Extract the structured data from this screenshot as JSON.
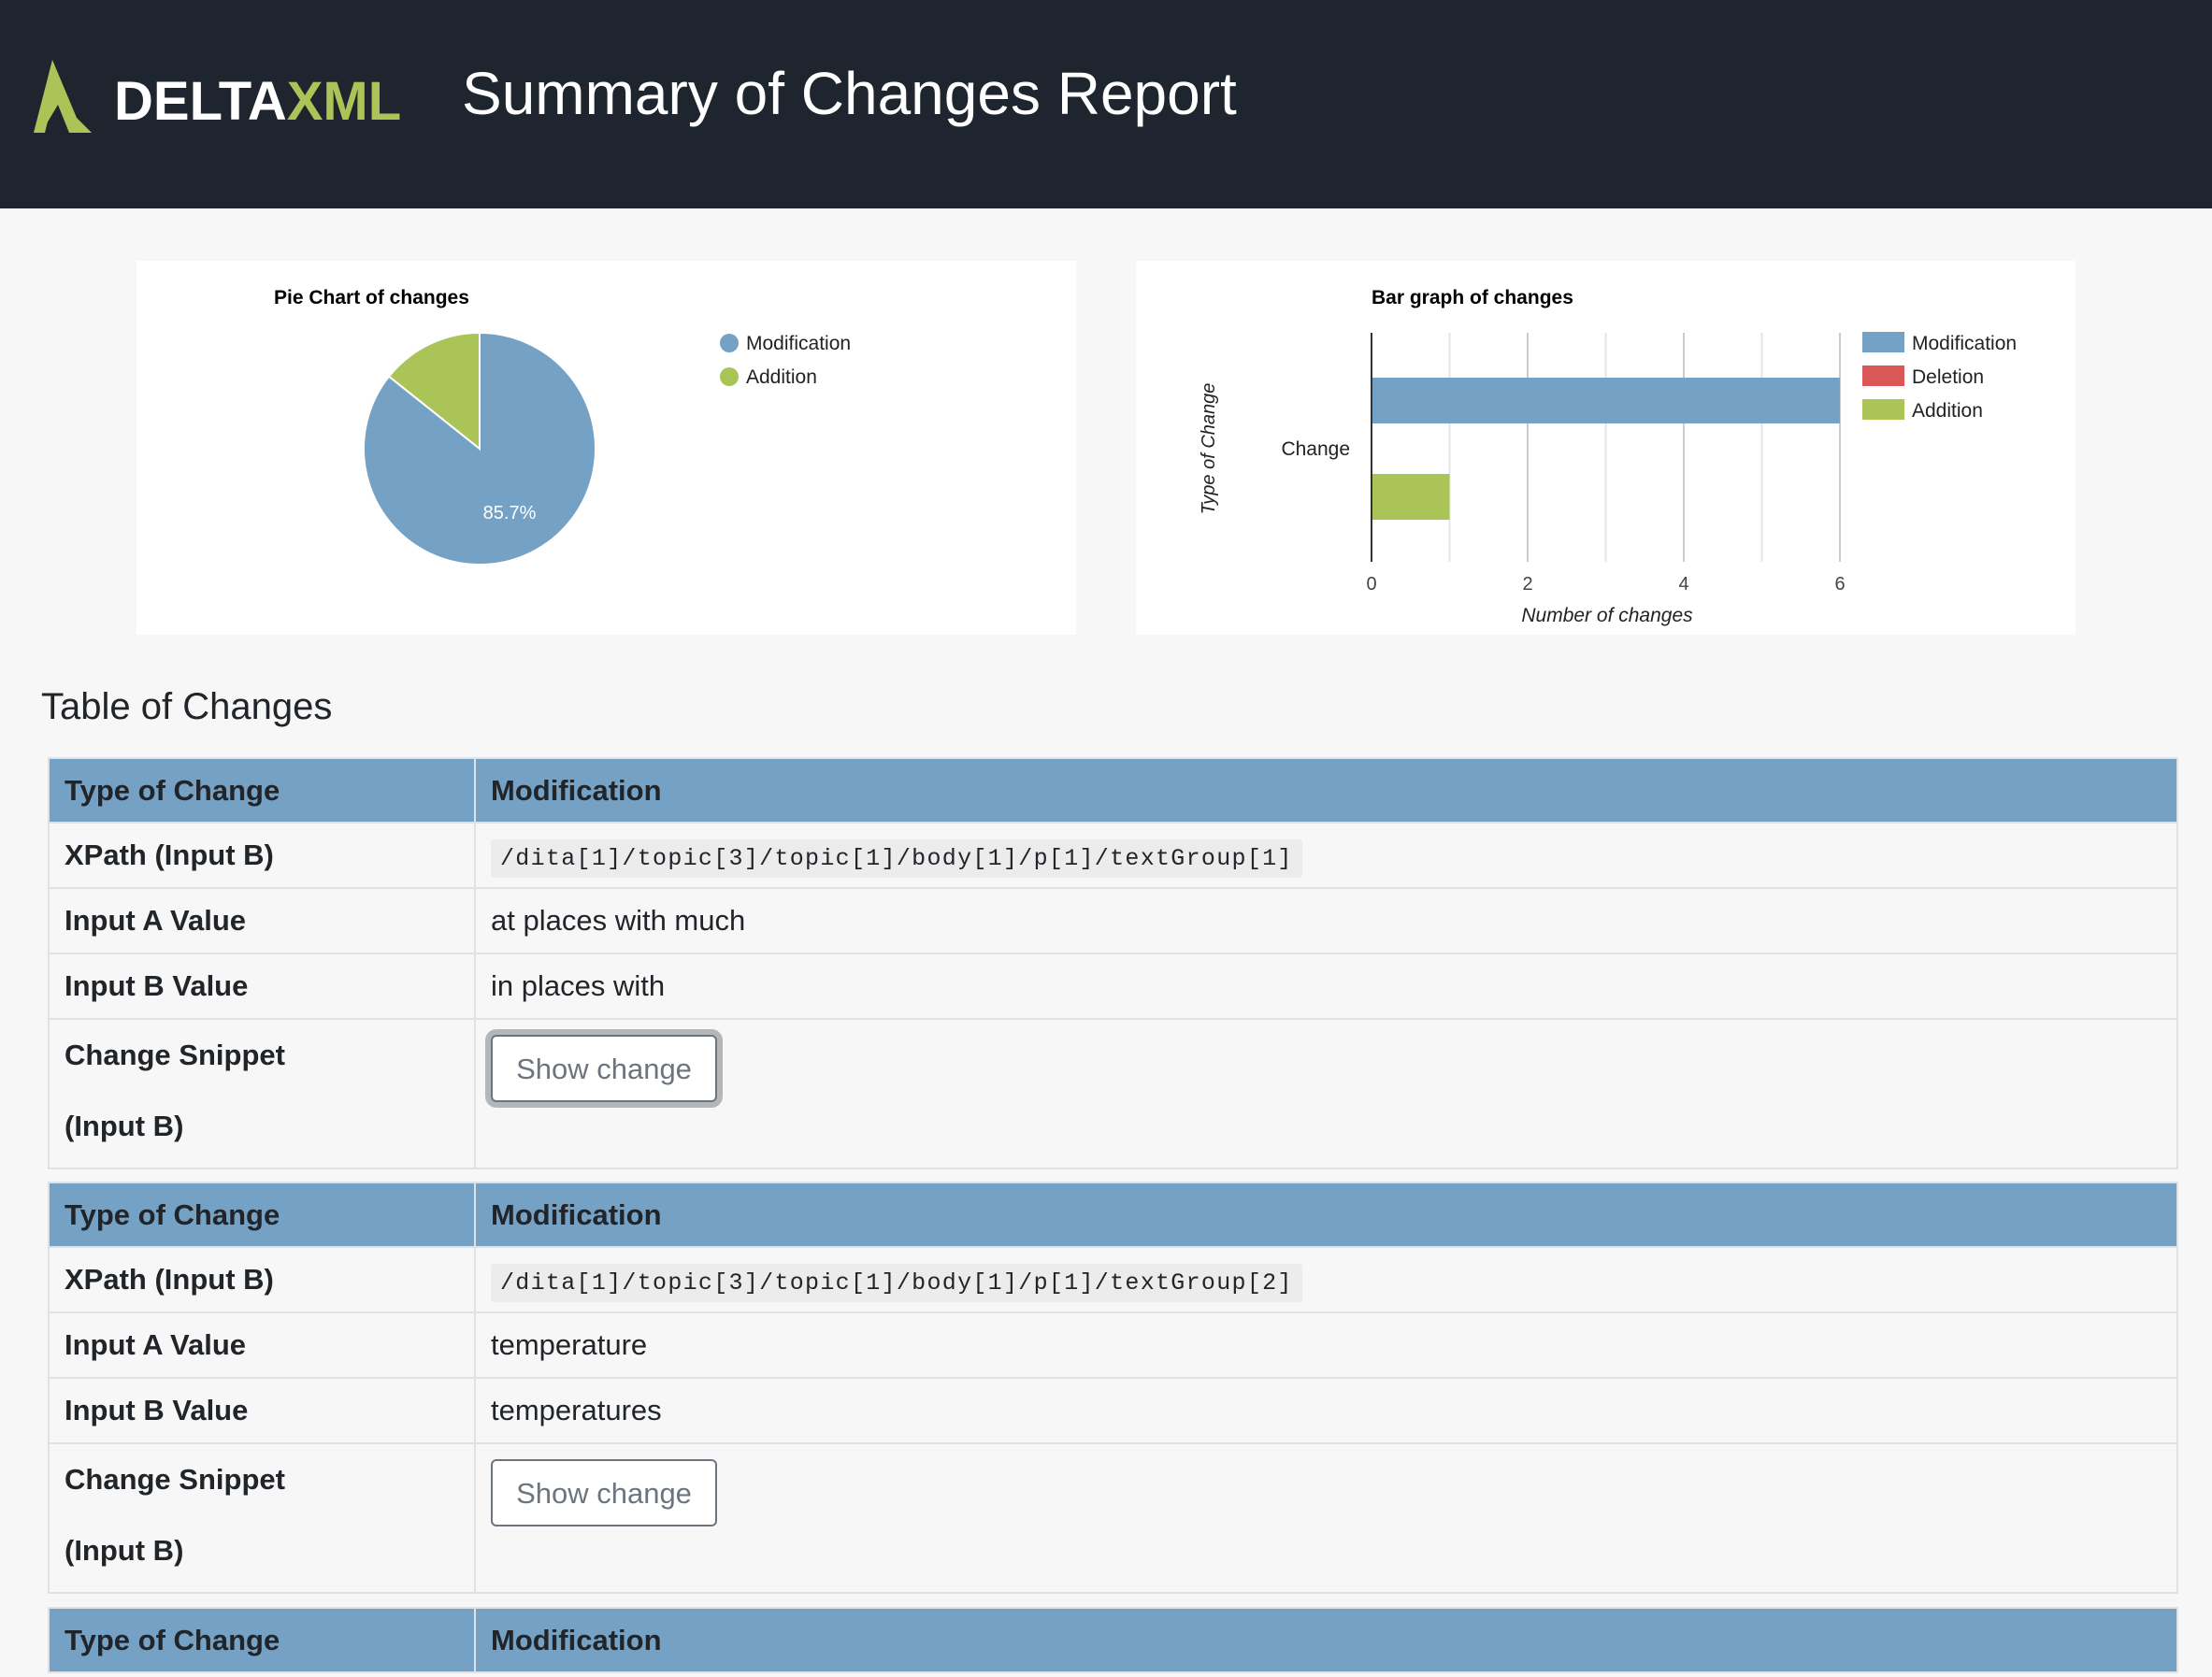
{
  "header": {
    "logo_text": "DELTAXML",
    "title": "Summary of Changes Report"
  },
  "colors": {
    "modification": "#74a1c4",
    "deletion": "#d95757",
    "addition": "#abc458",
    "header_bg": "#1f252e"
  },
  "chart_data": [
    {
      "type": "pie",
      "title": "Pie Chart of changes",
      "categories": [
        "Modification",
        "Addition"
      ],
      "values": [
        6,
        1
      ],
      "data_labels": [
        "85.7%",
        ""
      ],
      "legend": "right"
    },
    {
      "type": "bar",
      "orientation": "horizontal",
      "title": "Bar graph of changes",
      "categories": [
        "Change"
      ],
      "series": [
        {
          "name": "Modification",
          "values": [
            6
          ]
        },
        {
          "name": "Deletion",
          "values": [
            0
          ]
        },
        {
          "name": "Addition",
          "values": [
            1
          ]
        }
      ],
      "xlabel": "Number of changes",
      "ylabel": "Type of Change",
      "xlim": [
        0,
        6
      ],
      "xticks": [
        "0",
        "2",
        "4",
        "6"
      ],
      "grid": true,
      "legend": "right"
    }
  ],
  "section_title": "Table of Changes",
  "labels": {
    "type": "Type of Change",
    "xpath": "XPath (Input B)",
    "a_value": "Input A Value",
    "b_value": "Input B Value",
    "snippet_1": "Change Snippet",
    "snippet_2": "(Input B)",
    "show_change": "Show change"
  },
  "changes": [
    {
      "type": "Modification",
      "xpath": "/dita[1]/topic[3]/topic[1]/body[1]/p[1]/textGroup[1]",
      "a_value": "at places with much",
      "b_value": "in places with"
    },
    {
      "type": "Modification",
      "xpath": "/dita[1]/topic[3]/topic[1]/body[1]/p[1]/textGroup[2]",
      "a_value": "temperature",
      "b_value": "temperatures"
    },
    {
      "type": "Modification"
    }
  ]
}
